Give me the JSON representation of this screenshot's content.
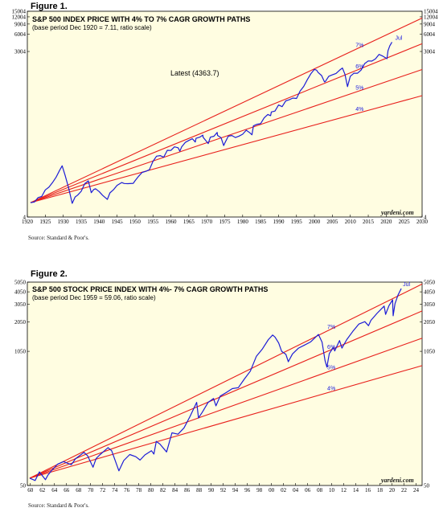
{
  "colors": {
    "plot_bg": "#fffde1",
    "index_line": "#1c1cd6",
    "growth_path": "#e8201c",
    "frame": "#000000"
  },
  "figure1": {
    "label": "Figure 1.",
    "source": "Source: Standard & Poor's.",
    "brand": "yardeni.com",
    "chart_data": {
      "type": "line",
      "title": "S&P 500 INDEX PRICE WITH 4% TO 7% CAGR GROWTH PATHS",
      "subtitle": "(base period Dec 1920 = 7.11, ratio scale)",
      "annotation": "Latest (4363.7)",
      "log_scale": true,
      "xlim": [
        1920,
        2030
      ],
      "ylim": [
        4,
        15004
      ],
      "x_ticks": [
        1920,
        1925,
        1930,
        1935,
        1940,
        1945,
        1950,
        1955,
        1960,
        1965,
        1970,
        1975,
        1980,
        1985,
        1990,
        1995,
        2000,
        2005,
        2010,
        2015,
        2020,
        2025,
        2030
      ],
      "y_ticks": [
        4,
        3004,
        6004,
        9004,
        12004,
        15004
      ],
      "base": {
        "x": 1920.9,
        "y": 7.11
      },
      "growth_paths": [
        {
          "name": "4%",
          "rate": 0.04
        },
        {
          "name": "5%",
          "rate": 0.05
        },
        {
          "name": "6%",
          "rate": 0.06
        },
        {
          "name": "7%",
          "rate": 0.07
        }
      ],
      "series_end_label": "Jul",
      "series": [
        {
          "x": [
            1920.9,
            1922,
            1923,
            1924,
            1925,
            1926,
            1927,
            1928,
            1929.0,
            1929.7,
            1930.5,
            1931.5,
            1932.5,
            1933.3,
            1934,
            1935,
            1936,
            1937.0,
            1937.8,
            1938.5,
            1939,
            1940,
            1941,
            1942.3,
            1943,
            1944,
            1945,
            1946.3,
            1947,
            1948,
            1949.5,
            1950,
            1951,
            1952,
            1953,
            1954,
            1955,
            1956,
            1957,
            1958,
            1959,
            1960,
            1961,
            1962,
            1962.5,
            1963,
            1964,
            1965,
            1966,
            1966.8,
            1967,
            1968,
            1968.9,
            1969,
            1970.4,
            1971,
            1972,
            1972.9,
            1973,
            1974,
            1974.7,
            1975,
            1976,
            1977,
            1978,
            1979,
            1980,
            1981,
            1982,
            1982.6,
            1983,
            1984,
            1985,
            1986,
            1987,
            1987.8,
            1988,
            1989,
            1990,
            1991,
            1992,
            1993,
            1994,
            1995,
            1996,
            1997,
            1998,
            1999,
            2000,
            2000.6,
            2001,
            2002,
            2002.8,
            2003,
            2004,
            2005,
            2006,
            2007,
            2007.8,
            2008.5,
            2009.2,
            2010,
            2011,
            2012,
            2013,
            2014,
            2015,
            2016,
            2017,
            2018,
            2019,
            2020.2,
            2020.5,
            2021,
            2021.6
          ],
          "y": [
            7.11,
            7.3,
            8.7,
            9.1,
            11.8,
            13.2,
            15.8,
            19.6,
            26,
            31,
            21.4,
            12.9,
            6.9,
            8.9,
            9.6,
            11.2,
            15.2,
            17,
            10.6,
            12,
            12.4,
            11.1,
            9.5,
            8.1,
            10.5,
            11.9,
            14.2,
            15.9,
            15.3,
            15.2,
            15.4,
            17,
            20.4,
            23.8,
            24.8,
            26.5,
            36.9,
            45.6,
            46.7,
            43.8,
            57.6,
            57.3,
            66.3,
            64,
            55.6,
            65.9,
            79,
            85.5,
            91.6,
            80.3,
            93.2,
            97.4,
            106,
            96.9,
            75.6,
            97.4,
            101.3,
            118,
            104.6,
            95.1,
            69.7,
            76.6,
            101.6,
            104.3,
            96.2,
            101.8,
            109.5,
            128.8,
            116.3,
            107.1,
            153,
            163.5,
            167,
            211,
            242,
            230.2,
            267,
            277,
            353,
            330,
            417,
            435,
            466,
            459,
            615,
            740,
            970,
            1229,
            1469,
            1420,
            1300,
            1148,
            890,
            896,
            1112,
            1181,
            1248,
            1418,
            1549,
            1210,
            735,
            1115,
            1258,
            1260,
            1426,
            1848,
            2059,
            2043,
            2239,
            2674,
            2507,
            2248,
            3100,
            3756,
            4363.7
          ]
        }
      ]
    }
  },
  "figure2": {
    "label": "Figure 2.",
    "source": "Source: Standard & Poor's.",
    "brand": "yardeni.com",
    "chart_data": {
      "type": "line",
      "title": "S&P 500 STOCK PRICE INDEX WITH 4%- 7% CAGR GROWTH PATHS",
      "subtitle": "(base period Dec 1959 = 59.06, ratio scale)",
      "log_scale": true,
      "xlim": [
        1959.5,
        2025
      ],
      "ylim": [
        50,
        5050
      ],
      "x_ticks": [
        1960,
        1962,
        1964,
        1966,
        1968,
        1970,
        1972,
        1974,
        1976,
        1978,
        1980,
        1982,
        1984,
        1986,
        1988,
        1990,
        1992,
        1994,
        1996,
        1998,
        2000,
        2002,
        2004,
        2006,
        2008,
        2010,
        2012,
        2014,
        2016,
        2018,
        2020,
        2022,
        2024
      ],
      "x_tick_labels": [
        "60",
        "62",
        "64",
        "66",
        "68",
        "70",
        "72",
        "74",
        "76",
        "78",
        "80",
        "82",
        "84",
        "86",
        "88",
        "90",
        "92",
        "94",
        "96",
        "98",
        "00",
        "02",
        "04",
        "06",
        "08",
        "10",
        "12",
        "14",
        "16",
        "18",
        "20",
        "22",
        "24"
      ],
      "y_ticks": [
        50,
        1050,
        2050,
        3050,
        4050,
        5050
      ],
      "base": {
        "x": 1959.9,
        "y": 59.06
      },
      "growth_paths": [
        {
          "name": "4%",
          "rate": 0.04
        },
        {
          "name": "5%",
          "rate": 0.05
        },
        {
          "name": "6%",
          "rate": 0.06
        },
        {
          "name": "7%",
          "rate": 0.07
        }
      ],
      "series_end_label": "Jul",
      "series": [
        {
          "x": [
            1959.9,
            1960.8,
            1961.5,
            1962.5,
            1962.9,
            1963.5,
            1964.5,
            1965.5,
            1966.8,
            1967.5,
            1968.9,
            1969.5,
            1970.4,
            1970.9,
            1971.5,
            1972.9,
            1973.5,
            1974.7,
            1975.5,
            1976.5,
            1977.5,
            1978.2,
            1979,
            1980.1,
            1980.5,
            1980.9,
            1981.5,
            1982.6,
            1983.5,
            1984.5,
            1985.5,
            1986.5,
            1987.6,
            1987.9,
            1988.5,
            1989.5,
            1990.4,
            1990.8,
            1991.5,
            1992.5,
            1993.5,
            1994.5,
            1995.5,
            1996.5,
            1997.5,
            1998.5,
            1999.5,
            2000.2,
            2000.6,
            2001.2,
            2001.7,
            2002.4,
            2002.8,
            2003.5,
            2004.5,
            2005.5,
            2006.5,
            2007.8,
            2008.4,
            2008.9,
            2009.2,
            2009.6,
            2010.3,
            2010.5,
            2011.3,
            2011.7,
            2012.5,
            2013.5,
            2014.5,
            2015.5,
            2016.1,
            2016.5,
            2017.5,
            2018.7,
            2018.95,
            2019.5,
            2020.1,
            2020.2,
            2020.5,
            2021,
            2021.55
          ],
          "y": [
            59.06,
            56,
            68,
            57,
            63,
            70,
            81,
            86,
            80,
            92,
            106,
            98,
            75.6,
            92,
            100,
            118,
            110,
            69.7,
            88,
            101,
            96,
            89,
            100,
            110,
            102,
            136,
            128,
            107,
            165,
            160,
            185,
            240,
            330,
            232,
            262,
            330,
            360,
            305,
            380,
            412,
            450,
            460,
            560,
            670,
            940,
            1110,
            1370,
            1520,
            1450,
            1270,
            1050,
            980,
            830,
            990,
            1130,
            1210,
            1300,
            1540,
            1290,
            850,
            735,
            1000,
            1150,
            1060,
            1340,
            1130,
            1370,
            1650,
            1950,
            2060,
            1880,
            2120,
            2480,
            2930,
            2430,
            2960,
            3380,
            2350,
            3100,
            3760,
            4363.7
          ]
        }
      ]
    }
  }
}
